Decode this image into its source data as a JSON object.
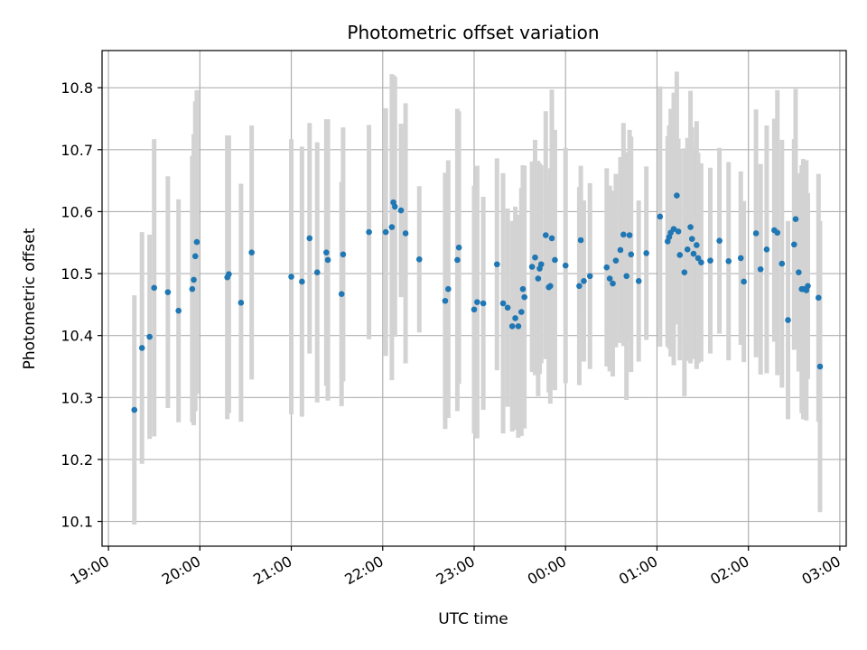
{
  "chart_data": {
    "type": "scatter",
    "title": "Photometric offset variation",
    "xlabel": "UTC time",
    "ylabel": "Photometric offset",
    "x_tick_labels": [
      "19:00",
      "20:00",
      "21:00",
      "22:00",
      "23:00",
      "00:00",
      "01:00",
      "02:00",
      "03:00"
    ],
    "y_ticks": [
      10.1,
      10.2,
      10.3,
      10.4,
      10.5,
      10.6,
      10.7,
      10.8
    ],
    "xlim_hours": [
      18.93,
      27.07
    ],
    "ylim": [
      10.06,
      10.86
    ],
    "grid": true,
    "colors": {
      "point": "#1f77b4",
      "errorbar": "#d3d3d3",
      "grid": "#b0b0b0"
    },
    "series": [
      {
        "x": [
          "19:17",
          "19:22",
          "19:27",
          "19:30",
          "19:39",
          "19:46",
          "19:55",
          "19:56",
          "19:57",
          "19:58",
          "20:18",
          "20:19",
          "20:27",
          "20:34",
          "21:00",
          "21:07",
          "21:12",
          "21:17",
          "21:23",
          "21:24",
          "21:33",
          "21:34",
          "21:51",
          "22:02",
          "22:06",
          "22:07",
          "22:08",
          "22:12",
          "22:15",
          "22:24",
          "22:41",
          "22:43",
          "22:49",
          "22:50",
          "23:00",
          "23:02",
          "23:06",
          "23:15",
          "23:19",
          "23:22",
          "23:25",
          "23:27",
          "23:29",
          "23:31",
          "23:32",
          "23:33",
          "23:38",
          "23:40",
          "23:42",
          "23:43",
          "23:44",
          "23:47",
          "23:49",
          "23:50",
          "23:51",
          "23:53",
          "00:00",
          "00:09",
          "00:10",
          "00:12",
          "00:16",
          "00:27",
          "00:29",
          "00:31",
          "00:33",
          "00:36",
          "00:38",
          "00:40",
          "00:42",
          "00:43",
          "00:48",
          "00:53",
          "01:02",
          "01:07",
          "01:08",
          "01:09",
          "01:11",
          "01:13",
          "01:14",
          "01:15",
          "01:18",
          "01:20",
          "01:22",
          "01:23",
          "01:24",
          "01:26",
          "01:27",
          "01:29",
          "01:35",
          "01:41",
          "01:47",
          "01:55",
          "01:57",
          "02:05",
          "02:08",
          "02:12",
          "02:17",
          "02:19",
          "02:22",
          "02:30",
          "02:31",
          "02:33",
          "02:35",
          "02:38",
          "02:46"
        ],
        "y": [
          10.28,
          10.38,
          10.398,
          10.477,
          10.47,
          10.44,
          10.475,
          10.49,
          10.528,
          10.551,
          10.494,
          10.499,
          10.453,
          10.534,
          10.495,
          10.487,
          10.557,
          10.502,
          10.534,
          10.522,
          10.467,
          10.531,
          10.567,
          10.567,
          10.575,
          10.615,
          10.608,
          10.602,
          10.565,
          10.523,
          10.456,
          10.475,
          10.522,
          10.542,
          10.442,
          10.454,
          10.452,
          10.515,
          10.452,
          10.445,
          10.415,
          10.428,
          10.415,
          10.438,
          10.475,
          10.462,
          10.511,
          10.526,
          10.492,
          10.508,
          10.515,
          10.562,
          10.478,
          10.48,
          10.557,
          10.522,
          10.513,
          10.48,
          10.554,
          10.488,
          10.496,
          10.51,
          10.492,
          10.484,
          10.521,
          10.538,
          10.563,
          10.496,
          10.562,
          10.531,
          10.488,
          10.533,
          10.592,
          10.552,
          10.559,
          10.566,
          10.572,
          10.626,
          10.568,
          10.53,
          10.502,
          10.539,
          10.575,
          10.556,
          10.532,
          10.546,
          10.525,
          10.518,
          10.521,
          10.553,
          10.52,
          10.525,
          10.487,
          10.565,
          10.507,
          10.539,
          10.57,
          10.566,
          10.516,
          10.547,
          10.588,
          10.502,
          10.475,
          10.473,
          10.461
        ],
        "yerr": [
          0.185,
          0.187,
          0.165,
          0.24,
          0.187,
          0.18,
          0.215,
          0.235,
          0.25,
          0.245,
          0.229,
          0.224,
          0.192,
          0.205,
          0.222,
          0.218,
          0.186,
          0.21,
          0.215,
          0.227,
          0.181,
          0.205,
          0.173,
          0.2,
          0.247,
          0.205,
          0.21,
          0.14,
          0.21,
          0.118,
          0.207,
          0.208,
          0.244,
          0.22,
          0.2,
          0.22,
          0.172,
          0.171,
          0.21,
          0.16,
          0.17,
          0.18,
          0.18,
          0.2,
          0.2,
          0.212,
          0.17,
          0.19,
          0.19,
          0.17,
          0.16,
          0.2,
          0.17,
          0.19,
          0.24,
          0.21,
          0.19,
          0.16,
          0.12,
          0.13,
          0.15,
          0.16,
          0.15,
          0.15,
          0.14,
          0.15,
          0.18,
          0.2,
          0.17,
          0.19,
          0.13,
          0.14,
          0.21,
          0.17,
          0.18,
          0.2,
          0.22,
          0.2,
          0.15,
          0.17,
          0.2,
          0.18,
          0.22,
          0.18,
          0.17,
          0.2,
          0.17,
          0.16,
          0.15,
          0.15,
          0.16,
          0.14,
          0.13,
          0.2,
          0.17,
          0.2,
          0.18,
          0.23,
          0.2,
          0.17,
          0.21,
          0.16,
          0.2,
          0.21,
          0.2
        ]
      },
      {
        "x": [
          "02:26",
          "02:36",
          "02:39",
          "02:47"
        ],
        "y": [
          10.425,
          10.475,
          10.48,
          10.35
        ],
        "yerr": [
          0.16,
          0.21,
          0.15,
          0.235
        ]
      }
    ]
  }
}
